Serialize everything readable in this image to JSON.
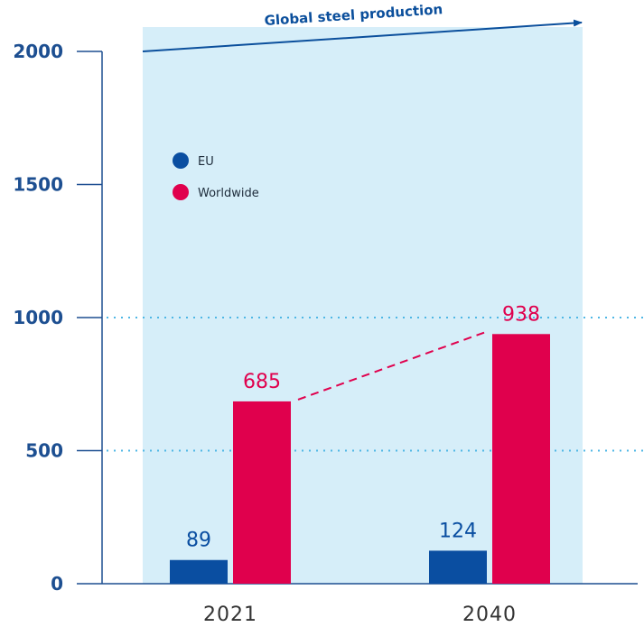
{
  "chart_data": {
    "type": "bar",
    "title": "",
    "band_label": "Global steel production",
    "categories": [
      "2021",
      "2040"
    ],
    "series": [
      {
        "name": "EU",
        "color": "#0a4ea1",
        "values": [
          89,
          124
        ]
      },
      {
        "name": "Worldwide",
        "color": "#e0004d",
        "values": [
          685,
          938
        ]
      }
    ],
    "ylim": [
      0,
      2000
    ],
    "yticks": [
      0,
      500,
      1000,
      1500,
      2000
    ],
    "gridlines": [
      500,
      1000
    ],
    "legend_position": "top-left",
    "band_color": "#d6eef9",
    "trend_connector_series": "Worldwide"
  }
}
